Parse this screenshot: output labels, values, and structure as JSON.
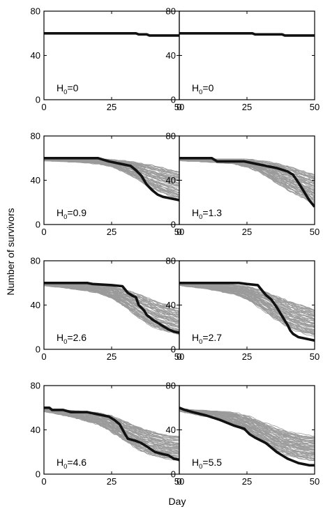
{
  "figure": {
    "ylabel": "Number of survivors",
    "xlabel": "Day"
  },
  "chart_data": [
    {
      "type": "line",
      "annotation_symbol": "H",
      "annotation_subscript": "0",
      "annotation_value": "=0",
      "xlim": [
        0,
        50
      ],
      "ylim": [
        0,
        80
      ],
      "xticks": [
        0,
        25,
        50
      ],
      "yticks": [
        0,
        40,
        80
      ],
      "observed": {
        "x": [
          0,
          34,
          35,
          38,
          39,
          50
        ],
        "y": [
          60,
          60,
          59,
          59,
          58,
          58
        ]
      },
      "simulations": null
    },
    {
      "type": "line",
      "annotation_symbol": "H",
      "annotation_subscript": "0",
      "annotation_value": "=0",
      "xlim": [
        0,
        50
      ],
      "ylim": [
        0,
        80
      ],
      "xticks": [
        0,
        25,
        50
      ],
      "yticks": [
        0,
        40,
        80
      ],
      "observed": {
        "x": [
          0,
          27,
          28,
          38,
          39,
          50
        ],
        "y": [
          60,
          60,
          59,
          59,
          58,
          58
        ]
      },
      "simulations": null
    },
    {
      "type": "line",
      "annotation_symbol": "H",
      "annotation_subscript": "0",
      "annotation_value": "=0.9",
      "xlim": [
        0,
        50
      ],
      "ylim": [
        0,
        80
      ],
      "xticks": [
        0,
        25,
        50
      ],
      "yticks": [
        0,
        40,
        80
      ],
      "observed": {
        "x": [
          0,
          20,
          24,
          28,
          32,
          34,
          36,
          38,
          40,
          42,
          44,
          46,
          48,
          50
        ],
        "y": [
          60,
          60,
          57,
          55,
          53,
          49,
          44,
          36,
          31,
          27,
          25,
          24,
          23,
          22
        ]
      },
      "simulations": {
        "count": 60,
        "x": [
          0,
          10,
          20,
          25,
          30,
          35,
          40,
          45,
          50
        ],
        "upper": [
          60,
          60,
          60,
          59,
          58,
          56,
          54,
          51,
          48
        ],
        "lower": [
          58,
          57,
          55,
          52,
          47,
          40,
          32,
          27,
          22
        ]
      }
    },
    {
      "type": "line",
      "annotation_symbol": "H",
      "annotation_subscript": "0",
      "annotation_value": "=1.3",
      "xlim": [
        0,
        50
      ],
      "ylim": [
        0,
        80
      ],
      "xticks": [
        0,
        25,
        50
      ],
      "yticks": [
        0,
        40,
        80
      ],
      "observed": {
        "x": [
          0,
          12,
          14,
          24,
          28,
          32,
          36,
          40,
          42,
          44,
          46,
          48,
          50
        ],
        "y": [
          60,
          60,
          57,
          57,
          55,
          53,
          51,
          48,
          45,
          38,
          30,
          22,
          16
        ]
      },
      "simulations": {
        "count": 60,
        "x": [
          0,
          10,
          20,
          25,
          30,
          35,
          40,
          45,
          50
        ],
        "upper": [
          60,
          60,
          60,
          59,
          58,
          56,
          53,
          49,
          45
        ],
        "lower": [
          58,
          57,
          55,
          52,
          47,
          39,
          31,
          25,
          18
        ]
      }
    },
    {
      "type": "line",
      "annotation_symbol": "H",
      "annotation_subscript": "0",
      "annotation_value": "=2.6",
      "xlim": [
        0,
        50
      ],
      "ylim": [
        0,
        80
      ],
      "xticks": [
        0,
        25,
        50
      ],
      "yticks": [
        0,
        40,
        80
      ],
      "observed": {
        "x": [
          0,
          16,
          18,
          25,
          29,
          31,
          33,
          34,
          35,
          37,
          38,
          40,
          42,
          44,
          46,
          48,
          50
        ],
        "y": [
          60,
          60,
          59,
          58,
          57,
          51,
          48,
          47,
          40,
          35,
          31,
          27,
          24,
          21,
          18,
          16,
          15
        ]
      },
      "simulations": {
        "count": 60,
        "x": [
          0,
          10,
          20,
          25,
          30,
          35,
          40,
          45,
          50
        ],
        "upper": [
          60,
          60,
          59,
          57,
          54,
          50,
          45,
          41,
          37
        ],
        "lower": [
          58,
          55,
          51,
          46,
          38,
          28,
          20,
          16,
          13
        ]
      }
    },
    {
      "type": "line",
      "annotation_symbol": "H",
      "annotation_subscript": "0",
      "annotation_value": "=2.7",
      "xlim": [
        0,
        50
      ],
      "ylim": [
        0,
        80
      ],
      "xticks": [
        0,
        25,
        50
      ],
      "yticks": [
        0,
        40,
        80
      ],
      "observed": {
        "x": [
          0,
          22,
          25,
          29,
          30,
          32,
          34,
          36,
          38,
          40,
          41,
          42,
          44,
          46,
          48,
          50
        ],
        "y": [
          60,
          60,
          59,
          58,
          55,
          49,
          45,
          38,
          30,
          22,
          17,
          14,
          11,
          10,
          9,
          8
        ]
      },
      "simulations": {
        "count": 60,
        "x": [
          0,
          10,
          20,
          25,
          30,
          35,
          40,
          45,
          50
        ],
        "upper": [
          60,
          60,
          59,
          57,
          54,
          49,
          44,
          40,
          36
        ],
        "lower": [
          58,
          55,
          50,
          45,
          37,
          28,
          20,
          15,
          12
        ]
      }
    },
    {
      "type": "line",
      "annotation_symbol": "H",
      "annotation_subscript": "0",
      "annotation_value": "=4.6",
      "xlim": [
        0,
        50
      ],
      "ylim": [
        0,
        80
      ],
      "xticks": [
        0,
        25,
        50
      ],
      "yticks": [
        0,
        40,
        80
      ],
      "observed": {
        "x": [
          0,
          2,
          3,
          7,
          10,
          16,
          18,
          22,
          24,
          26,
          28,
          30,
          31,
          34,
          36,
          38,
          41,
          44,
          46,
          48,
          50
        ],
        "y": [
          60,
          60,
          58,
          58,
          56,
          56,
          55,
          53,
          52,
          49,
          45,
          36,
          32,
          30,
          28,
          25,
          20,
          18,
          17,
          14,
          13
        ]
      },
      "simulations": {
        "count": 60,
        "x": [
          0,
          10,
          20,
          25,
          30,
          35,
          40,
          45,
          50
        ],
        "upper": [
          59,
          58,
          56,
          53,
          48,
          43,
          39,
          36,
          35
        ],
        "lower": [
          57,
          52,
          45,
          38,
          30,
          22,
          17,
          14,
          12
        ]
      }
    },
    {
      "type": "line",
      "annotation_symbol": "H",
      "annotation_subscript": "0",
      "annotation_value": "=5.5",
      "xlim": [
        0,
        50
      ],
      "ylim": [
        0,
        80
      ],
      "xticks": [
        0,
        25,
        50
      ],
      "yticks": [
        0,
        40,
        80
      ],
      "observed": {
        "x": [
          0,
          2,
          5,
          10,
          15,
          20,
          24,
          26,
          28,
          32,
          34,
          36,
          38,
          40,
          42,
          44,
          46,
          48,
          50
        ],
        "y": [
          60,
          58,
          56,
          53,
          49,
          44,
          41,
          36,
          33,
          28,
          24,
          20,
          17,
          14,
          12,
          10,
          9,
          8,
          8
        ]
      },
      "simulations": {
        "count": 60,
        "x": [
          0,
          10,
          20,
          25,
          30,
          35,
          40,
          45,
          50
        ],
        "upper": [
          59,
          58,
          56,
          53,
          48,
          43,
          39,
          36,
          35
        ],
        "lower": [
          57,
          52,
          45,
          38,
          30,
          22,
          17,
          14,
          12
        ]
      }
    }
  ]
}
